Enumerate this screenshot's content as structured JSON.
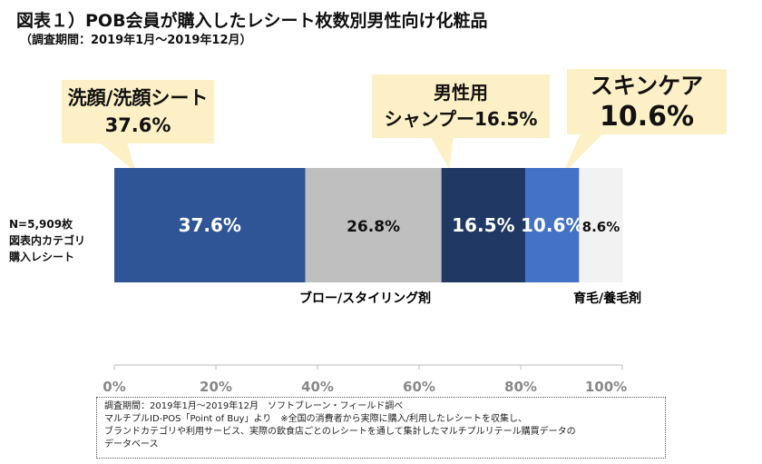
{
  "title": "図表１）POB会員が購入したレシート枚数別男性向け化粧品",
  "subtitle": "（調査期間：2019年1月～2019年12月）",
  "chart_data": {
    "type": "bar",
    "orientation": "horizontal-stacked",
    "category_label": [
      "N=5,909枚",
      "図表内カテゴリ",
      "購入レシート"
    ],
    "series": [
      {
        "name": "洗顔/洗顔シート",
        "value": 37.6,
        "label": "37.6%",
        "color": "#2f5597"
      },
      {
        "name": "ブロー/スタイリング剤",
        "value": 26.8,
        "label": "26.8%",
        "color": "#bfbfbf"
      },
      {
        "name": "男性用シャンプー",
        "value": 16.5,
        "label": "16.5%",
        "color": "#203864"
      },
      {
        "name": "スキンケア",
        "value": 10.6,
        "label": "10.6%",
        "color": "#4472c4"
      },
      {
        "name": "育毛/養毛剤",
        "value": 8.6,
        "label": "8.6%",
        "color": "#f2f2f2"
      }
    ],
    "xlim": [
      0,
      100
    ],
    "ticks": [
      "0%",
      "20%",
      "40%",
      "60%",
      "80%",
      "100%"
    ],
    "callouts": [
      {
        "line1": "洗顔/洗顔シート",
        "line2": "37.6%"
      },
      {
        "line1": "男性用",
        "line2": "シャンプー16.5%"
      },
      {
        "line1": "スキンケア",
        "line2": "10.6%"
      }
    ],
    "below_labels": [
      "ブロー/スタイリング剤",
      "育毛/養毛剤"
    ]
  },
  "note": [
    "調査期間：2019年1月～2019年12月　ソフトブレーン・フィールド調べ",
    "マルチプルID-POS「Point of Buy」より　※全国の消費者から実際に購入/利用したレシートを収集し、",
    "ブランドカテゴリや利用サービス、実際の飲食店ごとのレシートを通して集計したマルチプルリテール購買データの",
    "データベース"
  ]
}
